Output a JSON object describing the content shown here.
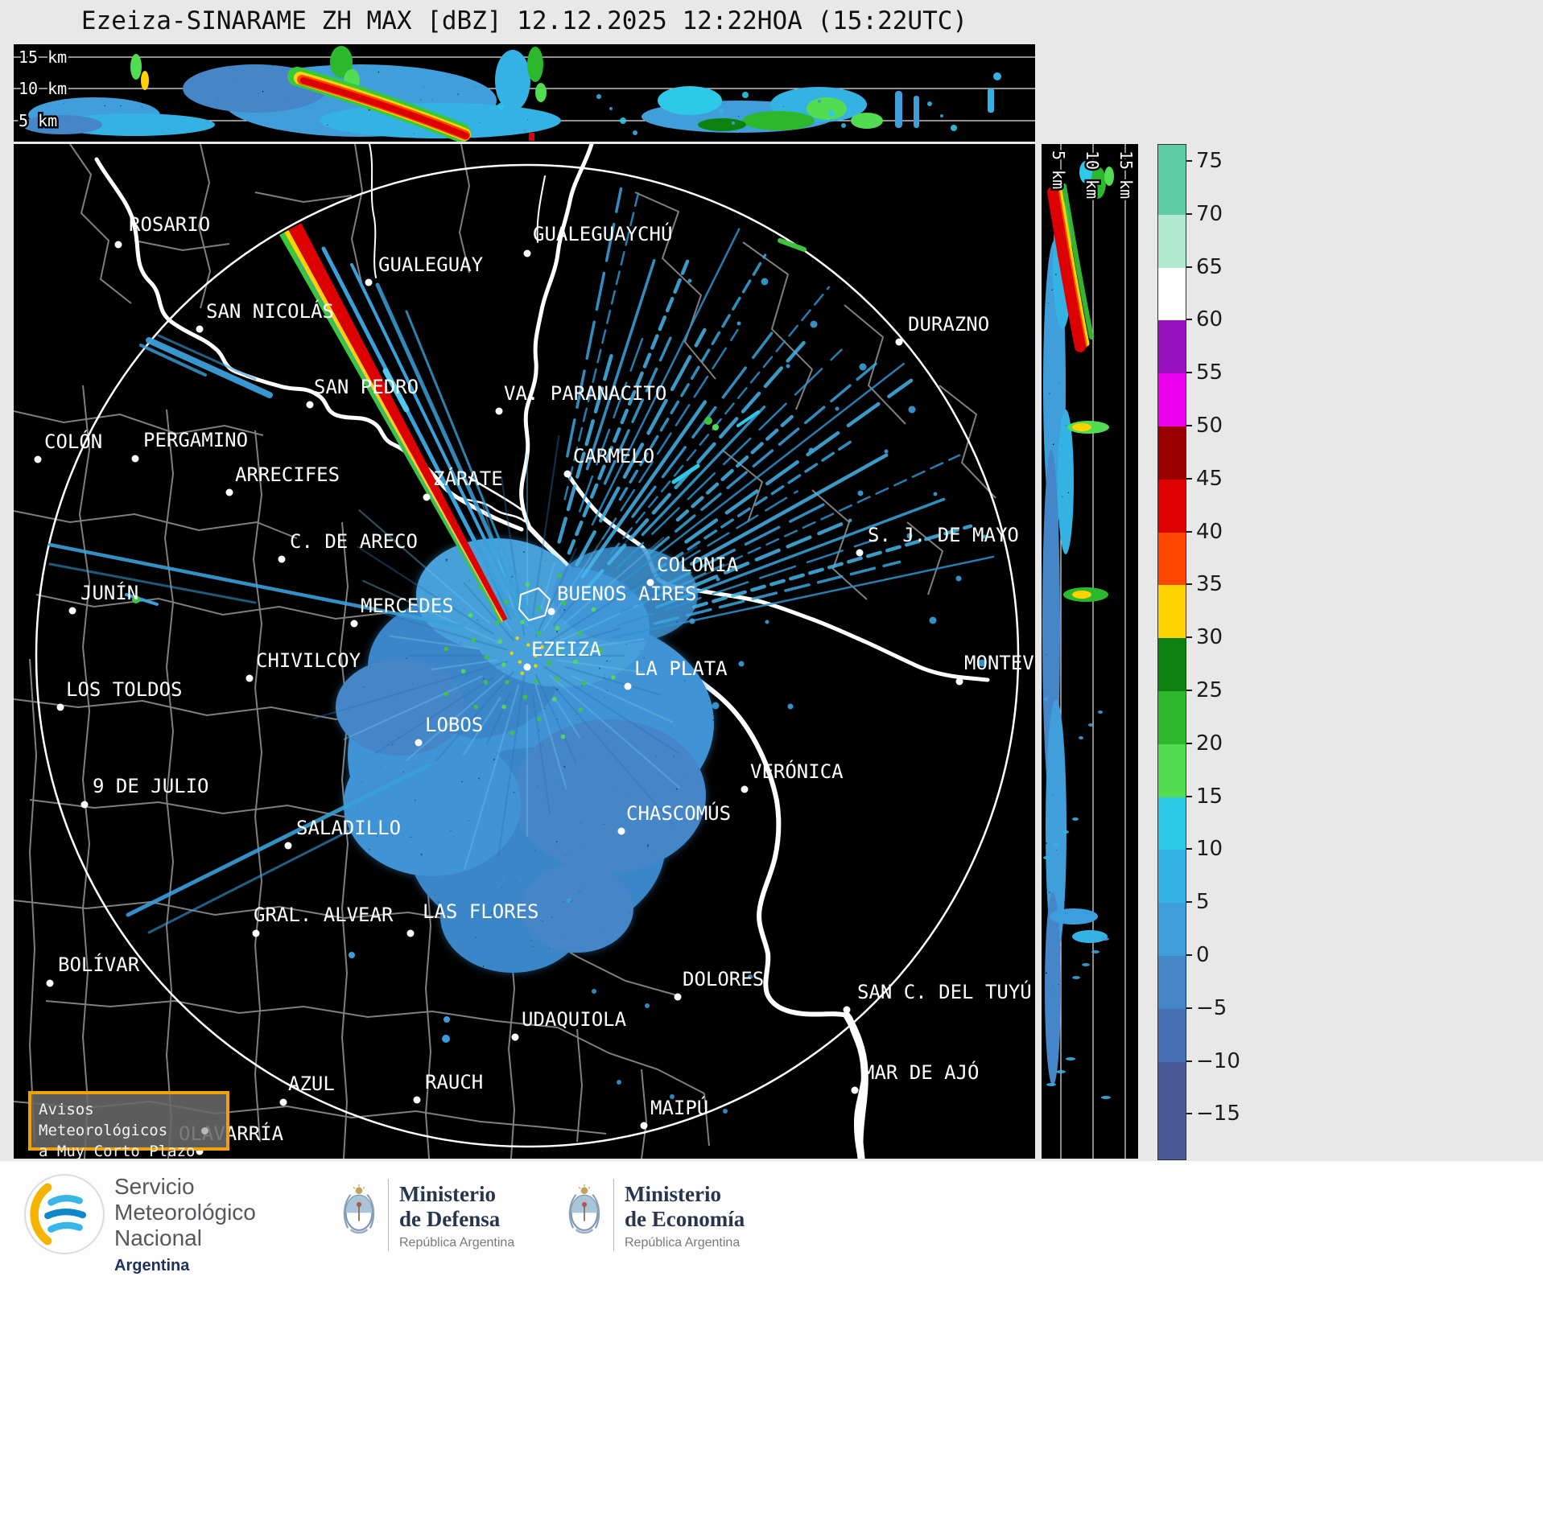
{
  "title": "Ezeiza-SINARAME ZH MAX [dBZ] 12.12.2025 12:22HOA (15:22UTC)",
  "panels": {
    "top": {
      "height_labels": [
        "15 km",
        "10 km",
        "5 km"
      ]
    },
    "right": {
      "height_labels": [
        "5 km",
        "10 km",
        "15 km"
      ]
    }
  },
  "colorbar": {
    "tick_labels": [
      "75",
      "70",
      "65",
      "60",
      "55",
      "50",
      "45",
      "40",
      "35",
      "30",
      "25",
      "20",
      "15",
      "10",
      "5",
      "0",
      "−5",
      "−10",
      "−15"
    ],
    "colors": [
      "#5ecda6",
      "#b0ebd1",
      "#ffffff",
      "#9612be",
      "#ee00ee",
      "#980000",
      "#dc0000",
      "#ff4600",
      "#ffd200",
      "#0e820e",
      "#2cb82c",
      "#52dc52",
      "#2ec8e8",
      "#35b2e4",
      "#3f9eda",
      "#4586c8",
      "#4670b4",
      "#4a5a96"
    ]
  },
  "cities": [
    {
      "name": "ROSARIO",
      "label": [
        143,
        108
      ],
      "dot": [
        130,
        125
      ]
    },
    {
      "name": "GUALEGUAYCHÚ",
      "label": [
        645,
        120
      ],
      "dot": [
        638,
        136
      ]
    },
    {
      "name": "GUALEGUAY",
      "label": [
        453,
        158
      ],
      "dot": [
        441,
        172
      ]
    },
    {
      "name": "SAN NICOLÁS",
      "label": [
        239,
        216
      ],
      "dot": [
        231,
        230
      ]
    },
    {
      "name": "DURAZNO",
      "label": [
        1111,
        232
      ],
      "dot": [
        1100,
        246
      ]
    },
    {
      "name": "SAN PEDRO",
      "label": [
        373,
        310
      ],
      "dot": [
        368,
        324
      ]
    },
    {
      "name": "VA. PARANACITO",
      "label": [
        609,
        318
      ],
      "dot": [
        603,
        332
      ]
    },
    {
      "name": "COLÓN",
      "label": [
        38,
        378
      ],
      "dot": [
        30,
        392
      ]
    },
    {
      "name": "PERGAMINO",
      "label": [
        161,
        376
      ],
      "dot": [
        151,
        391
      ]
    },
    {
      "name": "ARRECIFES",
      "label": [
        275,
        419
      ],
      "dot": [
        268,
        433
      ]
    },
    {
      "name": "CARMELO",
      "label": [
        695,
        396
      ],
      "dot": [
        688,
        410
      ]
    },
    {
      "name": "ZÁRATE",
      "label": [
        521,
        424
      ],
      "dot": [
        513,
        439
      ]
    },
    {
      "name": "C. DE ARECO",
      "label": [
        343,
        502
      ],
      "dot": [
        333,
        516
      ]
    },
    {
      "name": "S. J. DE MAYO",
      "label": [
        1061,
        494
      ],
      "dot": [
        1051,
        508
      ]
    },
    {
      "name": "COLONIA",
      "label": [
        799,
        531
      ],
      "dot": [
        791,
        545
      ]
    },
    {
      "name": "JUNÍN",
      "label": [
        83,
        566
      ],
      "dot": [
        73,
        580
      ]
    },
    {
      "name": "MERCEDES",
      "label": [
        431,
        582
      ],
      "dot": [
        423,
        596
      ]
    },
    {
      "name": "BUENOS AIRES",
      "label": [
        675,
        567
      ],
      "dot": [
        668,
        581
      ]
    },
    {
      "name": "EZEIZA",
      "label": [
        643,
        636
      ],
      "dot": [
        638,
        650
      ]
    },
    {
      "name": "CHIVILCOY",
      "label": [
        301,
        650
      ],
      "dot": [
        293,
        664
      ]
    },
    {
      "name": "LA PLATA",
      "label": [
        771,
        660
      ],
      "dot": [
        763,
        674
      ]
    },
    {
      "name": "MONTEVIDEO",
      "label": [
        1181,
        653
      ],
      "dot": [
        1175,
        668
      ]
    },
    {
      "name": "LOS TOLDOS",
      "label": [
        65,
        686
      ],
      "dot": [
        58,
        700
      ]
    },
    {
      "name": "LOBOS",
      "label": [
        511,
        730
      ],
      "dot": [
        503,
        744
      ]
    },
    {
      "name": "VERÓNICA",
      "label": [
        915,
        788
      ],
      "dot": [
        908,
        802
      ]
    },
    {
      "name": "9 DE JULIO",
      "label": [
        98,
        806
      ],
      "dot": [
        88,
        821
      ]
    },
    {
      "name": "CHASCOMÚS",
      "label": [
        761,
        840
      ],
      "dot": [
        755,
        854
      ]
    },
    {
      "name": "SALADILLO",
      "label": [
        351,
        858
      ],
      "dot": [
        341,
        872
      ]
    },
    {
      "name": "GRAL. ALVEAR",
      "label": [
        298,
        966
      ],
      "dot": [
        301,
        981
      ]
    },
    {
      "name": "LAS FLORES",
      "label": [
        508,
        962
      ],
      "dot": [
        493,
        981
      ]
    },
    {
      "name": "BOLÍVAR",
      "label": [
        55,
        1028
      ],
      "dot": [
        45,
        1043
      ]
    },
    {
      "name": "DOLORES",
      "label": [
        831,
        1046
      ],
      "dot": [
        825,
        1060
      ]
    },
    {
      "name": "SAN C. DEL TUYÚ",
      "label": [
        1048,
        1062
      ],
      "dot": [
        1035,
        1076
      ]
    },
    {
      "name": "UDAQUIOLA",
      "label": [
        631,
        1096
      ],
      "dot": [
        623,
        1110
      ]
    },
    {
      "name": "MAR DE AJÓ",
      "label": [
        1055,
        1162
      ],
      "dot": [
        1045,
        1176
      ]
    },
    {
      "name": "AZUL",
      "label": [
        341,
        1176
      ],
      "dot": [
        335,
        1191
      ]
    },
    {
      "name": "RAUCH",
      "label": [
        511,
        1174
      ],
      "dot": [
        501,
        1188
      ]
    },
    {
      "name": "OLAVARRÍA",
      "label": [
        205,
        1238
      ],
      "dot": [
        231,
        1252
      ]
    },
    {
      "name": "MAIPÚ",
      "label": [
        791,
        1206
      ],
      "dot": [
        783,
        1220
      ]
    }
  ],
  "warning_box": {
    "lines": [
      "Avisos Meteorológicos",
      "a Muy Corto Plazo"
    ]
  },
  "footer": {
    "smn": {
      "name_lines": [
        "Servicio",
        "Meteorológico",
        "Nacional"
      ],
      "country": "Argentina"
    },
    "ministries": [
      {
        "lines": [
          "Ministerio",
          "de Defensa"
        ],
        "sub": "República Argentina"
      },
      {
        "lines": [
          "Ministerio",
          "de Economía"
        ],
        "sub": "República Argentina"
      }
    ]
  }
}
